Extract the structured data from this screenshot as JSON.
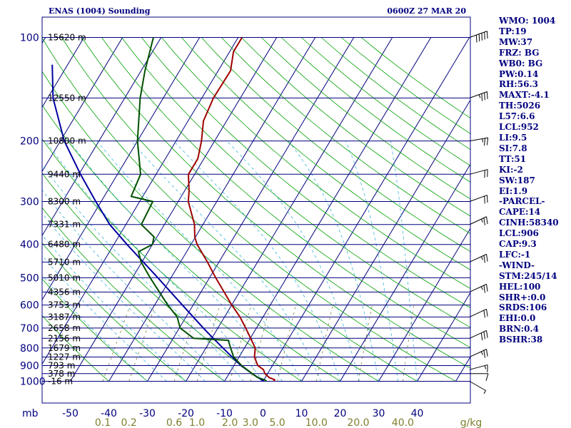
{
  "header": {
    "title": "ENAS (1004) Sounding",
    "datetime": "0600Z 27 MAR 20"
  },
  "chart_data": {
    "type": "skew-t",
    "title": "ENAS (1004) Sounding",
    "pressure_unit_label": "mb",
    "mixing_ratio_unit_label": "g/kg",
    "pressure_levels": [
      100,
      200,
      300,
      400,
      500,
      600,
      700,
      800,
      900,
      1000
    ],
    "pressure_labels": [
      "100",
      "200",
      "300",
      "400",
      "500",
      "600",
      "700",
      "800",
      "900",
      "1000"
    ],
    "height_lines": [
      {
        "p": 100,
        "label": "15620 m"
      },
      {
        "p": 150,
        "label": "12550 m"
      },
      {
        "p": 200,
        "label": "10800 m"
      },
      {
        "p": 250,
        "label": "9440 m"
      },
      {
        "p": 300,
        "label": "8300 m"
      },
      {
        "p": 350,
        "label": "7331 m"
      },
      {
        "p": 400,
        "label": "6480 m"
      },
      {
        "p": 450,
        "label": "5710 m"
      },
      {
        "p": 500,
        "label": "5010 m"
      },
      {
        "p": 550,
        "label": "4356 m"
      },
      {
        "p": 600,
        "label": "3753 m"
      },
      {
        "p": 650,
        "label": "3187 m"
      },
      {
        "p": 700,
        "label": "2658 m"
      },
      {
        "p": 750,
        "label": "2156 m"
      },
      {
        "p": 800,
        "label": "1679 m"
      },
      {
        "p": 850,
        "label": "1227 m"
      },
      {
        "p": 900,
        "label": "793 m"
      },
      {
        "p": 950,
        "label": "378 m"
      },
      {
        "p": 1000,
        "label": "-16 m"
      }
    ],
    "temperature_ticks": [
      -50,
      -40,
      -30,
      -20,
      -10,
      0,
      10,
      20,
      30,
      40
    ],
    "temperature_labels": [
      "-50",
      "-40",
      "-30",
      "-20",
      "-10",
      "0",
      "10",
      "20",
      "30",
      "40"
    ],
    "mixing_ratio_values": [
      0.1,
      0.2,
      0.6,
      1.0,
      2.0,
      3.0,
      5.0,
      10.0,
      20.0,
      40.0
    ],
    "mixing_ratio_labels": [
      "0.1",
      "0.2",
      "0.6",
      "1.0",
      "2.0",
      "3.0",
      "5.0",
      "10.0",
      "20.0",
      "40.0"
    ],
    "temperature_profile": [
      {
        "p": 1000,
        "t": 2.8
      },
      {
        "p": 990,
        "t": 2.8
      },
      {
        "p": 975,
        "t": 1.0
      },
      {
        "p": 950,
        "t": -0.7
      },
      {
        "p": 925,
        "t": -1.7
      },
      {
        "p": 900,
        "t": -3.8
      },
      {
        "p": 850,
        "t": -6.0
      },
      {
        "p": 800,
        "t": -7.2
      },
      {
        "p": 750,
        "t": -9.9
      },
      {
        "p": 700,
        "t": -12.8
      },
      {
        "p": 650,
        "t": -16.0
      },
      {
        "p": 600,
        "t": -20.0
      },
      {
        "p": 550,
        "t": -24.0
      },
      {
        "p": 500,
        "t": -28.4
      },
      {
        "p": 450,
        "t": -33.0
      },
      {
        "p": 400,
        "t": -38.4
      },
      {
        "p": 380,
        "t": -40.2
      },
      {
        "p": 350,
        "t": -42.2
      },
      {
        "p": 300,
        "t": -47.4
      },
      {
        "p": 280,
        "t": -48.8
      },
      {
        "p": 250,
        "t": -51.6
      },
      {
        "p": 225,
        "t": -51.6
      },
      {
        "p": 200,
        "t": -53.4
      },
      {
        "p": 175,
        "t": -56.0
      },
      {
        "p": 150,
        "t": -57.0
      },
      {
        "p": 125,
        "t": -56.8
      },
      {
        "p": 110,
        "t": -59.0
      },
      {
        "p": 100,
        "t": -59.0
      }
    ],
    "dewpoint_profile": [
      {
        "p": 1000,
        "t": 0.9
      },
      {
        "p": 990,
        "t": 0.2
      },
      {
        "p": 975,
        "t": -2.0
      },
      {
        "p": 950,
        "t": -4.0
      },
      {
        "p": 900,
        "t": -8.0
      },
      {
        "p": 850,
        "t": -11.4
      },
      {
        "p": 800,
        "t": -13.6
      },
      {
        "p": 760,
        "t": -15.4
      },
      {
        "p": 750,
        "t": -24.7
      },
      {
        "p": 700,
        "t": -29.8
      },
      {
        "p": 650,
        "t": -32.3
      },
      {
        "p": 600,
        "t": -36.6
      },
      {
        "p": 550,
        "t": -40.8
      },
      {
        "p": 500,
        "t": -45.4
      },
      {
        "p": 450,
        "t": -50.2
      },
      {
        "p": 420,
        "t": -52.5
      },
      {
        "p": 400,
        "t": -50.0
      },
      {
        "p": 380,
        "t": -50.8
      },
      {
        "p": 350,
        "t": -56.0
      },
      {
        "p": 300,
        "t": -56.6
      },
      {
        "p": 290,
        "t": -63.0
      },
      {
        "p": 250,
        "t": -64.0
      },
      {
        "p": 200,
        "t": -70.0
      },
      {
        "p": 150,
        "t": -76.0
      },
      {
        "p": 125,
        "t": -79.0
      },
      {
        "p": 100,
        "t": -82.0
      }
    ],
    "parcel_profile": [
      {
        "p": 1000,
        "t": 0.2
      },
      {
        "p": 950,
        "t": -4.0
      },
      {
        "p": 900,
        "t": -8.2
      },
      {
        "p": 850,
        "t": -11.8
      },
      {
        "p": 800,
        "t": -15.6
      },
      {
        "p": 750,
        "t": -19.6
      },
      {
        "p": 700,
        "t": -23.8
      },
      {
        "p": 600,
        "t": -32.8
      },
      {
        "p": 500,
        "t": -43.4
      },
      {
        "p": 400,
        "t": -56.6
      },
      {
        "p": 350,
        "t": -64.2
      },
      {
        "p": 300,
        "t": -71.4
      },
      {
        "p": 250,
        "t": -79.6
      },
      {
        "p": 200,
        "t": -89.0
      },
      {
        "p": 150,
        "t": -98.6
      },
      {
        "p": 120,
        "t": -104.0
      }
    ],
    "wind_barbs": [
      {
        "p": 100,
        "dir": 250,
        "kt": 50
      },
      {
        "p": 150,
        "dir": 250,
        "kt": 35
      },
      {
        "p": 200,
        "dir": 260,
        "kt": 25
      },
      {
        "p": 250,
        "dir": 255,
        "kt": 20
      },
      {
        "p": 300,
        "dir": 250,
        "kt": 20
      },
      {
        "p": 350,
        "dir": 245,
        "kt": 25
      },
      {
        "p": 450,
        "dir": 245,
        "kt": 25
      },
      {
        "p": 550,
        "dir": 245,
        "kt": 25
      },
      {
        "p": 650,
        "dir": 245,
        "kt": 20
      },
      {
        "p": 750,
        "dir": 245,
        "kt": 30
      },
      {
        "p": 850,
        "dir": 245,
        "kt": 25
      },
      {
        "p": 925,
        "dir": 255,
        "kt": 15
      },
      {
        "p": 950,
        "dir": 270,
        "kt": 10
      },
      {
        "p": 1000,
        "dir": 300,
        "kt": 5
      }
    ]
  },
  "indices": [
    "WMO: 1004",
    "TP:19",
    "MW:37",
    "FRZ: BG",
    "WB0: BG",
    "PW:0.14",
    "RH:56.3",
    "MAXT:-4.1",
    "TH:5026",
    "L57:6.6",
    "LCL:952",
    "LI:9.5",
    "SI:7.8",
    "TT:51",
    "KI:-2",
    "SW:187",
    "EI:1.9",
    "-PARCEL-",
    "CAPE:14",
    "CINH:58340",
    "LCL:906",
    "CAP:9.3",
    "LFC:-1",
    "-WIND-",
    "STM:245/14",
    "HEL:100",
    "SHR+:0.0",
    "SRDS:106",
    "EHI:0.0",
    "BRN:0.4",
    "BSHR:38"
  ],
  "colors": {
    "frame": "#00007f",
    "isobar": "#00007f",
    "isotherm": "#00007f",
    "dry_adiabat": "#00a000",
    "moist_adiabat": "#3cb4d8",
    "mixing_ratio": "#7f7f3f",
    "temperature": "#a00000",
    "dewpoint": "#005000",
    "parcel": "#0000a0",
    "wind": "#000000",
    "bottom_labels": "#7f7f2f"
  }
}
